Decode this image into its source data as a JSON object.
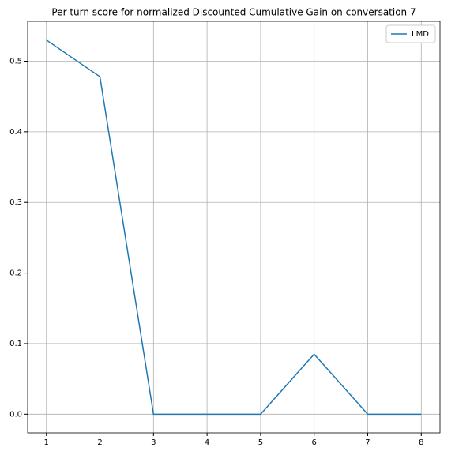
{
  "chart_data": {
    "type": "line",
    "title": "Per turn score for normalized Discounted Cumulative Gain on conversation 7",
    "x": [
      1,
      2,
      3,
      4,
      5,
      6,
      7,
      8
    ],
    "series": [
      {
        "name": "LMD",
        "color": "#1f77b4",
        "values": [
          0.53,
          0.478,
          0,
          0,
          0,
          0.085,
          0,
          0
        ]
      }
    ],
    "xlim": [
      0.65,
      8.35
    ],
    "xticks": [
      1,
      2,
      3,
      4,
      5,
      6,
      7,
      8
    ],
    "ylim": [
      -0.0265,
      0.5565
    ],
    "yticks": [
      {
        "value": 0,
        "label": "0.0"
      },
      0.1,
      0.2,
      0.3,
      0.4,
      0.5
    ],
    "grid": true,
    "legend": "upper right"
  }
}
